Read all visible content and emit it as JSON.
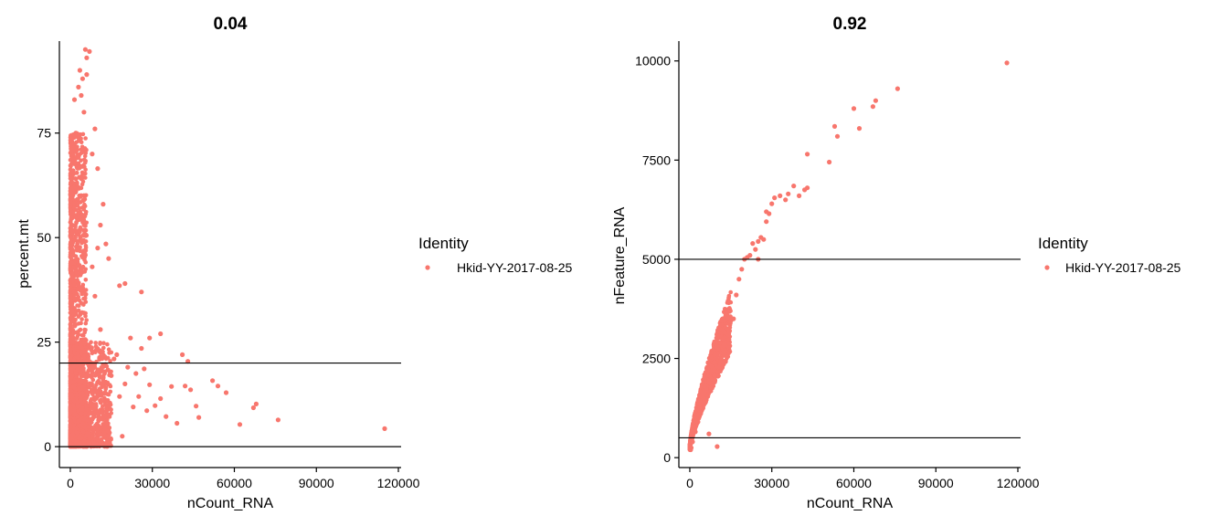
{
  "chart_data": [
    {
      "type": "scatter",
      "title": "0.04",
      "xlabel": "nCount_RNA",
      "ylabel": "percent.mt",
      "xlim": [
        -4000,
        121000
      ],
      "ylim": [
        -5,
        97
      ],
      "xticks": [
        0,
        30000,
        60000,
        90000,
        120000
      ],
      "yticks": [
        0,
        25,
        50,
        75
      ],
      "hlines": [
        0,
        20
      ],
      "grid": false,
      "legend": {
        "title": "Identity",
        "position": "right"
      },
      "series": [
        {
          "name": "Hkid-YY-2017-08-25",
          "color": "#F8766D",
          "points": [
            [
              115000,
              4.3
            ],
            [
              76000,
              6.4
            ],
            [
              68000,
              10.2
            ],
            [
              67000,
              9.3
            ],
            [
              62000,
              5.3
            ],
            [
              57000,
              12.9
            ],
            [
              54000,
              14.5
            ],
            [
              52000,
              15.8
            ],
            [
              47000,
              7.0
            ],
            [
              46000,
              9.7
            ],
            [
              44000,
              13.6
            ],
            [
              43000,
              20.4
            ],
            [
              42000,
              14.5
            ],
            [
              41000,
              22.0
            ],
            [
              39000,
              5.6
            ],
            [
              37000,
              14.4
            ],
            [
              35000,
              7.2
            ],
            [
              33000,
              11.5
            ],
            [
              33000,
              27.0
            ],
            [
              31000,
              9.8
            ],
            [
              29000,
              14.8
            ],
            [
              29000,
              26.0
            ],
            [
              28000,
              8.6
            ],
            [
              27000,
              18.6
            ],
            [
              26000,
              23.5
            ],
            [
              26000,
              37.0
            ],
            [
              25000,
              12.0
            ],
            [
              24000,
              17.5
            ],
            [
              23000,
              9.5
            ],
            [
              22000,
              26.0
            ],
            [
              21000,
              19.0
            ],
            [
              20000,
              15.0
            ],
            [
              20000,
              39.0
            ],
            [
              19000,
              2.5
            ],
            [
              18000,
              12.0
            ],
            [
              18000,
              38.5
            ],
            [
              17000,
              22.0
            ],
            [
              16000,
              21.0
            ],
            [
              15000,
              17.0
            ],
            [
              14000,
              45.0
            ],
            [
              13000,
              48.5
            ],
            [
              12000,
              6.5
            ],
            [
              12000,
              58.0
            ],
            [
              11000,
              28.0
            ],
            [
              11000,
              53.0
            ],
            [
              10000,
              47.5
            ],
            [
              10000,
              66.5
            ],
            [
              9000,
              36.0
            ],
            [
              9000,
              76.0
            ],
            [
              8000,
              43.0
            ],
            [
              8000,
              70.0
            ],
            [
              7000,
              94.5
            ],
            [
              6000,
              93.0
            ],
            [
              6000,
              89.0
            ],
            [
              5500,
              95.0
            ],
            [
              5000,
              80.0
            ],
            [
              4500,
              88.0
            ],
            [
              4000,
              84.0
            ],
            [
              3500,
              90.0
            ],
            [
              3000,
              62.0
            ],
            [
              3000,
              86.0
            ],
            [
              2500,
              71.0
            ],
            [
              2500,
              47.0
            ],
            [
              2000,
              75.0
            ],
            [
              2000,
              55.0
            ],
            [
              1500,
              83.0
            ],
            [
              1500,
              37.0
            ],
            [
              1000,
              66.0
            ],
            [
              1000,
              30.0
            ],
            [
              800,
              56.0
            ],
            [
              500,
              44.0
            ],
            [
              500,
              12.0
            ],
            [
              300,
              72.0
            ],
            [
              200,
              25.0
            ],
            [
              100,
              5.0
            ],
            [
              0,
              2.0
            ],
            [
              0,
              0.5
            ],
            [
              50,
              9.0
            ]
          ],
          "dense_clusters": [
            {
              "x_range": [
                0,
                6000
              ],
              "y_range": [
                0,
                75
              ]
            },
            {
              "x_range": [
                0,
                15000
              ],
              "y_range": [
                0,
                25
              ]
            }
          ]
        }
      ]
    },
    {
      "type": "scatter",
      "title": "0.92",
      "xlabel": "nCount_RNA",
      "ylabel": "nFeature_RNA",
      "xlim": [
        -4000,
        121000
      ],
      "ylim": [
        -250,
        10500
      ],
      "xticks": [
        0,
        30000,
        60000,
        90000,
        120000
      ],
      "yticks": [
        0,
        2500,
        5000,
        7500,
        10000
      ],
      "hlines": [
        500,
        5000
      ],
      "grid": false,
      "legend": {
        "title": "Identity",
        "position": "right"
      },
      "series": [
        {
          "name": "Hkid-YY-2017-08-25",
          "color": "#F8766D",
          "points": [
            [
              116000,
              9950
            ],
            [
              76000,
              9300
            ],
            [
              68000,
              9000
            ],
            [
              67000,
              8850
            ],
            [
              62000,
              8300
            ],
            [
              60000,
              8800
            ],
            [
              54000,
              8100
            ],
            [
              53000,
              8350
            ],
            [
              51000,
              7450
            ],
            [
              43000,
              7650
            ],
            [
              43000,
              6800
            ],
            [
              42000,
              6750
            ],
            [
              40000,
              6600
            ],
            [
              38000,
              6850
            ],
            [
              36000,
              6650
            ],
            [
              35000,
              6500
            ],
            [
              33000,
              6600
            ],
            [
              31000,
              6550
            ],
            [
              30000,
              6400
            ],
            [
              29000,
              6150
            ],
            [
              28000,
              6200
            ],
            [
              28000,
              5950
            ],
            [
              27000,
              5500
            ],
            [
              26000,
              5550
            ],
            [
              25000,
              5000
            ],
            [
              25000,
              5450
            ],
            [
              24000,
              5250
            ],
            [
              23000,
              5400
            ],
            [
              22000,
              5100
            ],
            [
              21000,
              5050
            ],
            [
              20000,
              5000
            ],
            [
              19000,
              4750
            ],
            [
              18000,
              4500
            ],
            [
              17000,
              4100
            ],
            [
              16000,
              3500
            ],
            [
              15000,
              3450
            ],
            [
              14000,
              3950
            ],
            [
              13000,
              3650
            ],
            [
              12000,
              3500
            ],
            [
              11000,
              2900
            ],
            [
              10000,
              3000
            ],
            [
              9000,
              2400
            ],
            [
              8000,
              2300
            ],
            [
              7000,
              1900
            ],
            [
              6000,
              1700
            ],
            [
              5000,
              1400
            ],
            [
              4000,
              1150
            ],
            [
              3000,
              900
            ],
            [
              2000,
              650
            ],
            [
              1000,
              400
            ],
            [
              500,
              250
            ],
            [
              300,
              200
            ],
            [
              10000,
              280
            ],
            [
              7000,
              600
            ]
          ],
          "dense_clusters": [
            {
              "x_range": [
                0,
                15000
              ],
              "y_range": [
                150,
                3600
              ]
            }
          ]
        }
      ]
    }
  ]
}
